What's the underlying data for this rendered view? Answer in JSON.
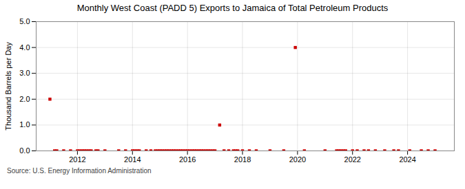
{
  "chart_data": {
    "type": "scatter",
    "title": "Monthly West Coast (PADD 5) Exports to Jamaica of Total Petroleum Products",
    "ylabel": "Thousand Barrels per Day",
    "annotations": [
      "Source: U.S. Energy Information Administration"
    ],
    "color": "#cc0000",
    "marker": "square",
    "grid": true,
    "xlim": [
      2010.5,
      2025.7
    ],
    "xticks": [
      2012,
      2014,
      2016,
      2018,
      2020,
      2022,
      2024
    ],
    "ylim": [
      0.0,
      5.0
    ],
    "yticks": [
      {
        "value": 0.0,
        "label": "0.0"
      },
      {
        "value": 1.0,
        "label": "1.0"
      },
      {
        "value": 2.0,
        "label": "2.0"
      },
      {
        "value": 3.0,
        "label": "3.0"
      },
      {
        "value": 4.0,
        "label": "4.0"
      },
      {
        "value": 5.0,
        "label": "5.0"
      }
    ],
    "x": [
      2011.0,
      2011.17,
      2011.25,
      2011.5,
      2011.75,
      2012.0,
      2012.08,
      2012.17,
      2012.25,
      2012.33,
      2012.42,
      2012.5,
      2012.67,
      2012.75,
      2013.0,
      2013.5,
      2013.75,
      2014.0,
      2014.08,
      2014.17,
      2014.25,
      2014.5,
      2014.67,
      2014.83,
      2014.92,
      2015.0,
      2015.08,
      2015.17,
      2015.25,
      2015.33,
      2015.42,
      2015.5,
      2015.58,
      2015.67,
      2015.75,
      2015.83,
      2015.92,
      2016.0,
      2016.08,
      2016.17,
      2016.25,
      2016.33,
      2016.42,
      2016.5,
      2016.58,
      2016.67,
      2016.75,
      2016.83,
      2016.92,
      2017.0,
      2017.17,
      2017.33,
      2017.5,
      2017.67,
      2017.75,
      2017.83,
      2018.0,
      2018.25,
      2018.5,
      2019.0,
      2019.5,
      2019.92,
      2020.25,
      2021.0,
      2021.42,
      2021.5,
      2021.58,
      2021.67,
      2021.75,
      2022.0,
      2022.17,
      2022.42,
      2022.58,
      2022.83,
      2023.17,
      2023.5,
      2023.67,
      2024.08,
      2024.5,
      2024.75,
      2025.0
    ],
    "values": [
      2.0,
      0.0,
      0.0,
      0.0,
      0.0,
      0.0,
      0.0,
      0.0,
      0.0,
      0.0,
      0.0,
      0.0,
      0.0,
      0.0,
      0.0,
      0.0,
      0.0,
      0.0,
      0.0,
      0.0,
      0.0,
      0.0,
      0.0,
      0.0,
      0.0,
      0.0,
      0.0,
      0.0,
      0.0,
      0.0,
      0.0,
      0.0,
      0.0,
      0.0,
      0.0,
      0.0,
      0.0,
      0.0,
      0.0,
      0.0,
      0.0,
      0.0,
      0.0,
      0.0,
      0.0,
      0.0,
      0.0,
      0.0,
      0.0,
      0.0,
      1.0,
      0.0,
      0.0,
      0.0,
      0.0,
      0.0,
      0.0,
      0.0,
      0.0,
      0.0,
      0.0,
      4.0,
      0.0,
      0.0,
      0.0,
      0.0,
      0.0,
      0.0,
      0.0,
      0.0,
      0.0,
      0.0,
      0.0,
      0.0,
      0.0,
      0.0,
      0.0,
      0.0,
      0.0,
      0.0,
      0.0
    ]
  }
}
